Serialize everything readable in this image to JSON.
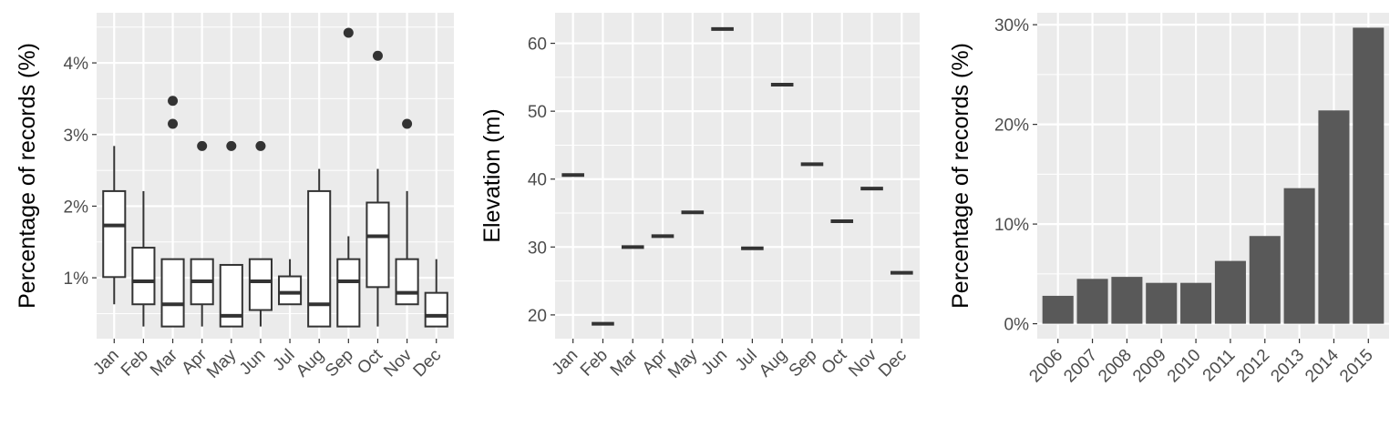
{
  "chart_data": [
    {
      "type": "boxplot",
      "ylabel": "Percentage of records (%)",
      "xlabel": "",
      "categories": [
        "Jan",
        "Feb",
        "Mar",
        "Apr",
        "May",
        "Jun",
        "Jul",
        "Aug",
        "Sep",
        "Oct",
        "Nov",
        "Dec"
      ],
      "ylim": [
        0.15,
        4.7
      ],
      "yticks": [
        {
          "value": 1,
          "label": "1%"
        },
        {
          "value": 2,
          "label": "2%"
        },
        {
          "value": 3,
          "label": "3%"
        },
        {
          "value": 4,
          "label": "4%"
        }
      ],
      "boxes": [
        {
          "category": "Jan",
          "whisker_low": 0.63,
          "q1": 1.01,
          "median": 1.73,
          "q3": 2.21,
          "whisker_high": 2.84,
          "outliers": []
        },
        {
          "category": "Feb",
          "whisker_low": 0.32,
          "q1": 0.63,
          "median": 0.95,
          "q3": 1.42,
          "whisker_high": 2.21,
          "outliers": []
        },
        {
          "category": "Mar",
          "whisker_low": 0.32,
          "q1": 0.32,
          "median": 0.63,
          "q3": 1.26,
          "whisker_high": 1.26,
          "outliers": [
            3.15,
            3.47
          ]
        },
        {
          "category": "Apr",
          "whisker_low": 0.32,
          "q1": 0.63,
          "median": 0.95,
          "q3": 1.26,
          "whisker_high": 1.26,
          "outliers": [
            2.84
          ]
        },
        {
          "category": "May",
          "whisker_low": 0.32,
          "q1": 0.32,
          "median": 0.47,
          "q3": 1.18,
          "whisker_high": 1.18,
          "outliers": [
            2.84
          ]
        },
        {
          "category": "Jun",
          "whisker_low": 0.32,
          "q1": 0.55,
          "median": 0.95,
          "q3": 1.26,
          "whisker_high": 1.26,
          "outliers": [
            2.84
          ]
        },
        {
          "category": "Jul",
          "whisker_low": 0.63,
          "q1": 0.63,
          "median": 0.79,
          "q3": 1.02,
          "whisker_high": 1.26,
          "outliers": []
        },
        {
          "category": "Aug",
          "whisker_low": 0.32,
          "q1": 0.32,
          "median": 0.63,
          "q3": 2.21,
          "whisker_high": 2.52,
          "outliers": []
        },
        {
          "category": "Sep",
          "whisker_low": 0.32,
          "q1": 0.32,
          "median": 0.95,
          "q3": 1.26,
          "whisker_high": 1.58,
          "outliers": [
            4.42
          ]
        },
        {
          "category": "Oct",
          "whisker_low": 0.32,
          "q1": 0.87,
          "median": 1.58,
          "q3": 2.05,
          "whisker_high": 2.52,
          "outliers": [
            4.1
          ]
        },
        {
          "category": "Nov",
          "whisker_low": 0.63,
          "q1": 0.63,
          "median": 0.79,
          "q3": 1.26,
          "whisker_high": 2.21,
          "outliers": [
            3.15
          ]
        },
        {
          "category": "Dec",
          "whisker_low": 0.32,
          "q1": 0.32,
          "median": 0.47,
          "q3": 0.79,
          "whisker_high": 1.26,
          "outliers": []
        }
      ],
      "grid": true
    },
    {
      "type": "boxplot",
      "ylabel": "Elevation (m)",
      "xlabel": "",
      "categories": [
        "Jan",
        "Feb",
        "Mar",
        "Apr",
        "May",
        "Jun",
        "Jul",
        "Aug",
        "Sep",
        "Oct",
        "Nov",
        "Dec"
      ],
      "ylim": [
        16.5,
        64.5
      ],
      "yticks": [
        {
          "value": 20,
          "label": "20"
        },
        {
          "value": 30,
          "label": "30"
        },
        {
          "value": 40,
          "label": "40"
        },
        {
          "value": 50,
          "label": "50"
        },
        {
          "value": 60,
          "label": "60"
        }
      ],
      "values": [
        40.6,
        18.7,
        30.0,
        31.6,
        35.1,
        62.1,
        29.8,
        53.9,
        42.2,
        33.8,
        38.6,
        26.2
      ],
      "grid": true
    },
    {
      "type": "bar",
      "ylabel": "Percentage of records (%)",
      "xlabel": "",
      "categories": [
        "2006",
        "2007",
        "2008",
        "2009",
        "2010",
        "2011",
        "2012",
        "2013",
        "2014",
        "2015"
      ],
      "values": [
        2.8,
        4.5,
        4.7,
        4.1,
        4.1,
        6.3,
        8.8,
        13.6,
        21.4,
        29.7
      ],
      "ylim": [
        -1.5,
        31.2
      ],
      "yticks": [
        {
          "value": 0,
          "label": "0%"
        },
        {
          "value": 10,
          "label": "10%"
        },
        {
          "value": 20,
          "label": "20%"
        },
        {
          "value": 30,
          "label": "30%"
        }
      ],
      "bar_color": "#595959",
      "grid": true
    }
  ],
  "colors": {
    "panel_background": "#ebebeb",
    "gridline": "#ffffff",
    "box_stroke": "#333333",
    "bar_fill": "#595959"
  }
}
